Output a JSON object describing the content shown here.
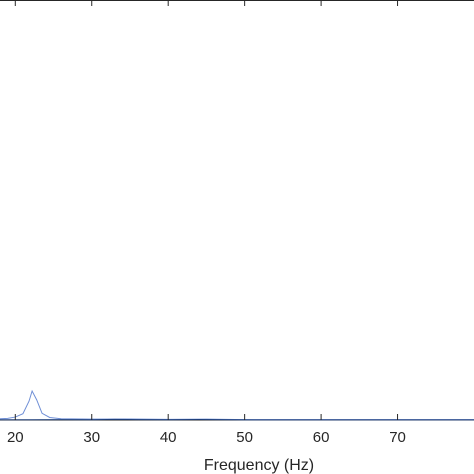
{
  "chart_data": {
    "type": "line",
    "title": "",
    "xlabel": "Frequency (Hz)",
    "ylabel": "",
    "xlim": [
      18,
      80
    ],
    "ylim": [
      0,
      100
    ],
    "x_ticks": [
      20,
      30,
      40,
      50,
      60,
      70
    ],
    "grid": false,
    "series": [
      {
        "color": "#6f8fd6",
        "x": [
          18,
          19,
          20,
          21,
          21.8,
          22.2,
          22.8,
          23.5,
          24.5,
          26,
          30,
          35,
          40,
          45,
          50,
          60,
          70,
          80
        ],
        "y": [
          0.3,
          0.4,
          0.7,
          1.5,
          4.5,
          6.9,
          4.8,
          1.6,
          0.6,
          0.3,
          0.2,
          0.25,
          0.15,
          0.2,
          0.1,
          0.1,
          0.1,
          0.1
        ]
      },
      {
        "color": "#1f3f7a",
        "x": [
          18,
          22,
          26,
          30,
          33,
          36,
          40,
          44,
          48,
          52,
          56,
          60,
          64,
          68,
          72,
          76,
          80
        ],
        "y": [
          0.05,
          0.05,
          0.08,
          0.05,
          0.15,
          0.08,
          0.05,
          0.12,
          0.05,
          0.04,
          0.04,
          0.04,
          0.04,
          0.04,
          0.04,
          0.04,
          0.04
        ]
      }
    ]
  }
}
